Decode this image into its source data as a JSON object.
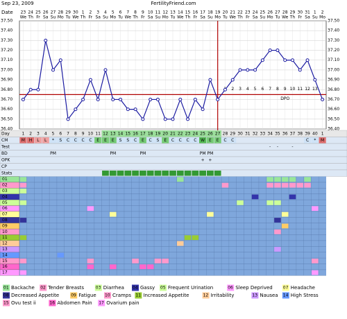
{
  "chart_data": {
    "type": "line",
    "date": "Sep 23, 2009",
    "site": "FertilityFriend.com",
    "date_label": "Date",
    "dates": [
      "23",
      "24",
      "25",
      "26",
      "27",
      "28",
      "29",
      "30",
      "1",
      "2",
      "3",
      "4",
      "5",
      "6",
      "7",
      "8",
      "9",
      "10",
      "11",
      "12",
      "13",
      "14",
      "15",
      "16",
      "17",
      "18",
      "19",
      "20",
      "21",
      "22",
      "23",
      "24",
      "25",
      "26",
      "27",
      "28",
      "29",
      "30",
      "31",
      "1",
      "2"
    ],
    "weekdays": [
      "We",
      "Th",
      "Fr",
      "Sa",
      "Su",
      "Mo",
      "Tu",
      "We",
      "Th",
      "Fr",
      "Sa",
      "Su",
      "Mo",
      "Tu",
      "We",
      "Th",
      "Fr",
      "Sa",
      "Su",
      "Mo",
      "Tu",
      "We",
      "Th",
      "Fr",
      "Sa",
      "Su",
      "Mo",
      "Tu",
      "We",
      "Th",
      "Fr",
      "Sa",
      "Su",
      "Mo",
      "Tu",
      "We",
      "Th",
      "Fr",
      "Sa",
      "Su",
      "Mo"
    ],
    "values": [
      36.7,
      36.8,
      36.8,
      37.3,
      37.0,
      37.1,
      36.5,
      36.6,
      36.7,
      36.9,
      36.7,
      37.0,
      36.7,
      36.7,
      36.6,
      36.6,
      36.5,
      36.7,
      36.7,
      36.5,
      36.5,
      36.7,
      36.5,
      36.7,
      36.6,
      36.9,
      36.7,
      36.8,
      36.9,
      37.0,
      37.0,
      37.0,
      37.1,
      37.2,
      37.2,
      37.1,
      37.1,
      37.0,
      37.1,
      36.9,
      36.7
    ],
    "color": "#1a1aa0",
    "coverline": 36.75,
    "coverline_color": "#b00000",
    "ovulation_day": 27,
    "dpo_labels": [
      "1",
      "2",
      "3",
      "4",
      "5",
      "6",
      "7",
      "8",
      "9",
      "10",
      "11",
      "12",
      "13"
    ],
    "dpo_text": "DPO",
    "ylim": [
      36.4,
      37.5
    ],
    "yticks": [
      {
        "value": 36.4,
        "label": "36.40"
      },
      {
        "value": 36.5,
        "label": "36.50"
      },
      {
        "value": 36.6,
        "label": "36.60"
      },
      {
        "value": 36.7,
        "label": "36.70"
      },
      {
        "value": 36.8,
        "label": "36.80"
      },
      {
        "value": 36.9,
        "label": "36.90"
      },
      {
        "value": 37.0,
        "label": "37.00"
      },
      {
        "value": 37.1,
        "label": "37.10"
      },
      {
        "value": 37.2,
        "label": "37.20"
      },
      {
        "value": 37.3,
        "label": "37.30"
      },
      {
        "value": 37.4,
        "label": "37.40"
      },
      {
        "value": 37.5,
        "label": "37.50"
      }
    ],
    "grid": true,
    "days": [
      "1",
      "2",
      "3",
      "4",
      "5",
      "6",
      "7",
      "8",
      "9",
      "10",
      "11",
      "12",
      "13",
      "14",
      "15",
      "16",
      "17",
      "18",
      "19",
      "20",
      "21",
      "22",
      "23",
      "24",
      "25",
      "26",
      "27",
      "28",
      "29",
      "30",
      "31",
      "32",
      "33",
      "34",
      "35",
      "36",
      "37",
      "38",
      "39",
      "40",
      "1"
    ],
    "rows": [
      {
        "label": "Day"
      },
      {
        "label": "CM",
        "cells": [
          "M",
          "H",
          "L",
          "L",
          "*",
          "S",
          "C",
          "C",
          "C",
          "C",
          "E",
          "E",
          "E",
          "S",
          "S",
          "C",
          "E",
          "C",
          "S",
          "E",
          "C",
          "C",
          "C",
          "C",
          "W",
          "E",
          "E",
          "C",
          "C",
          null,
          null,
          null,
          null,
          null,
          null,
          null,
          null,
          null,
          "C",
          "*",
          "M"
        ]
      },
      {
        "label": "Test",
        "cells": [
          null,
          null,
          null,
          null,
          null,
          null,
          null,
          null,
          null,
          null,
          null,
          null,
          null,
          null,
          null,
          null,
          null,
          null,
          null,
          null,
          null,
          null,
          null,
          null,
          null,
          null,
          null,
          null,
          null,
          null,
          null,
          null,
          null,
          "-",
          "-",
          null,
          "-",
          null,
          null,
          null,
          null
        ]
      },
      {
        "label": "BD",
        "cells": [
          null,
          null,
          null,
          null,
          "PM",
          null,
          null,
          null,
          null,
          null,
          null,
          null,
          "PM",
          null,
          null,
          null,
          "PM",
          null,
          null,
          null,
          null,
          null,
          null,
          null,
          "PM",
          "PM",
          null,
          null,
          null,
          null,
          null,
          null,
          null,
          null,
          null,
          null,
          null,
          null,
          null,
          null,
          null
        ]
      },
      {
        "label": "OPK",
        "cells": [
          null,
          null,
          null,
          null,
          null,
          null,
          null,
          null,
          null,
          null,
          null,
          null,
          null,
          null,
          null,
          null,
          null,
          null,
          null,
          null,
          null,
          null,
          null,
          null,
          "+",
          "+",
          null,
          null,
          null,
          null,
          null,
          null,
          null,
          null,
          null,
          null,
          null,
          null,
          null,
          null,
          null
        ]
      },
      {
        "label": "CP"
      },
      {
        "label": "Stats"
      }
    ],
    "cm_colors": {
      "M": "#e07070",
      "H": "#e07070",
      "L": "#f0a0a0",
      "E": "#77cc77",
      "W": "#55bb55",
      "C": "#cfe3f7",
      "S": "#cfe3f7",
      "*": "#cfe3f7"
    },
    "fertile_days": [
      12,
      13,
      14,
      15,
      16,
      17,
      18,
      19,
      20,
      21,
      22,
      23,
      24,
      25,
      26,
      27
    ],
    "fertile_color": "#339933",
    "symptoms": [
      {
        "code": "01",
        "name": "Backache",
        "color": "#99e699",
        "days": [
          1,
          22,
          34,
          35,
          36,
          37,
          39
        ]
      },
      {
        "code": "02",
        "name": "Tender Breasts",
        "color": "#ff99cc",
        "days": [
          1,
          28,
          34,
          35,
          36,
          37,
          38,
          39
        ]
      },
      {
        "code": "03",
        "name": "Diarrhea",
        "color": "#ccff99",
        "days": [
          1
        ]
      },
      {
        "code": "04",
        "name": "Gassy",
        "color": "#3333aa",
        "days": [
          32,
          37
        ]
      },
      {
        "code": "05",
        "name": "Frequent Urination",
        "color": "#ccff99",
        "days": [
          1,
          30,
          34,
          35
        ]
      },
      {
        "code": "06",
        "name": "Sleep Deprived",
        "color": "#ff99ff",
        "days": [
          10,
          40
        ]
      },
      {
        "code": "07",
        "name": "Headache",
        "color": "#ffff99",
        "days": [
          13,
          26,
          36
        ]
      },
      {
        "code": "08",
        "name": "Decreased Appetite",
        "color": "#333399",
        "days": [
          1,
          35
        ]
      },
      {
        "code": "09",
        "name": "Fatigue",
        "color": "#ffcc66",
        "days": [
          36
        ]
      },
      {
        "code": "10",
        "name": "Cramps",
        "color": "#ff99cc",
        "days": [
          35
        ]
      },
      {
        "code": "11",
        "name": "Increased Appetite",
        "color": "#99cc33",
        "days": [
          1,
          23,
          24
        ]
      },
      {
        "code": "12",
        "name": "Irritability",
        "color": "#ffcc99",
        "days": [
          22
        ]
      },
      {
        "code": "13",
        "name": "Nausea",
        "color": "#cc99ff",
        "days": [
          35
        ]
      },
      {
        "code": "14",
        "name": "High Stress",
        "color": "#6699ff",
        "days": [
          6
        ]
      },
      {
        "code": "15",
        "name": "Ovu test ii",
        "color": "#ff99cc",
        "days": [
          1,
          10,
          16,
          19,
          20,
          40
        ]
      },
      {
        "code": "16",
        "name": "Abdomen Pain",
        "color": "#ff66cc",
        "days": [
          10,
          13,
          17,
          18
        ]
      },
      {
        "code": "17",
        "name": "Ovarium pain",
        "color": "#ff99ff",
        "days": [
          1,
          40
        ]
      }
    ]
  }
}
